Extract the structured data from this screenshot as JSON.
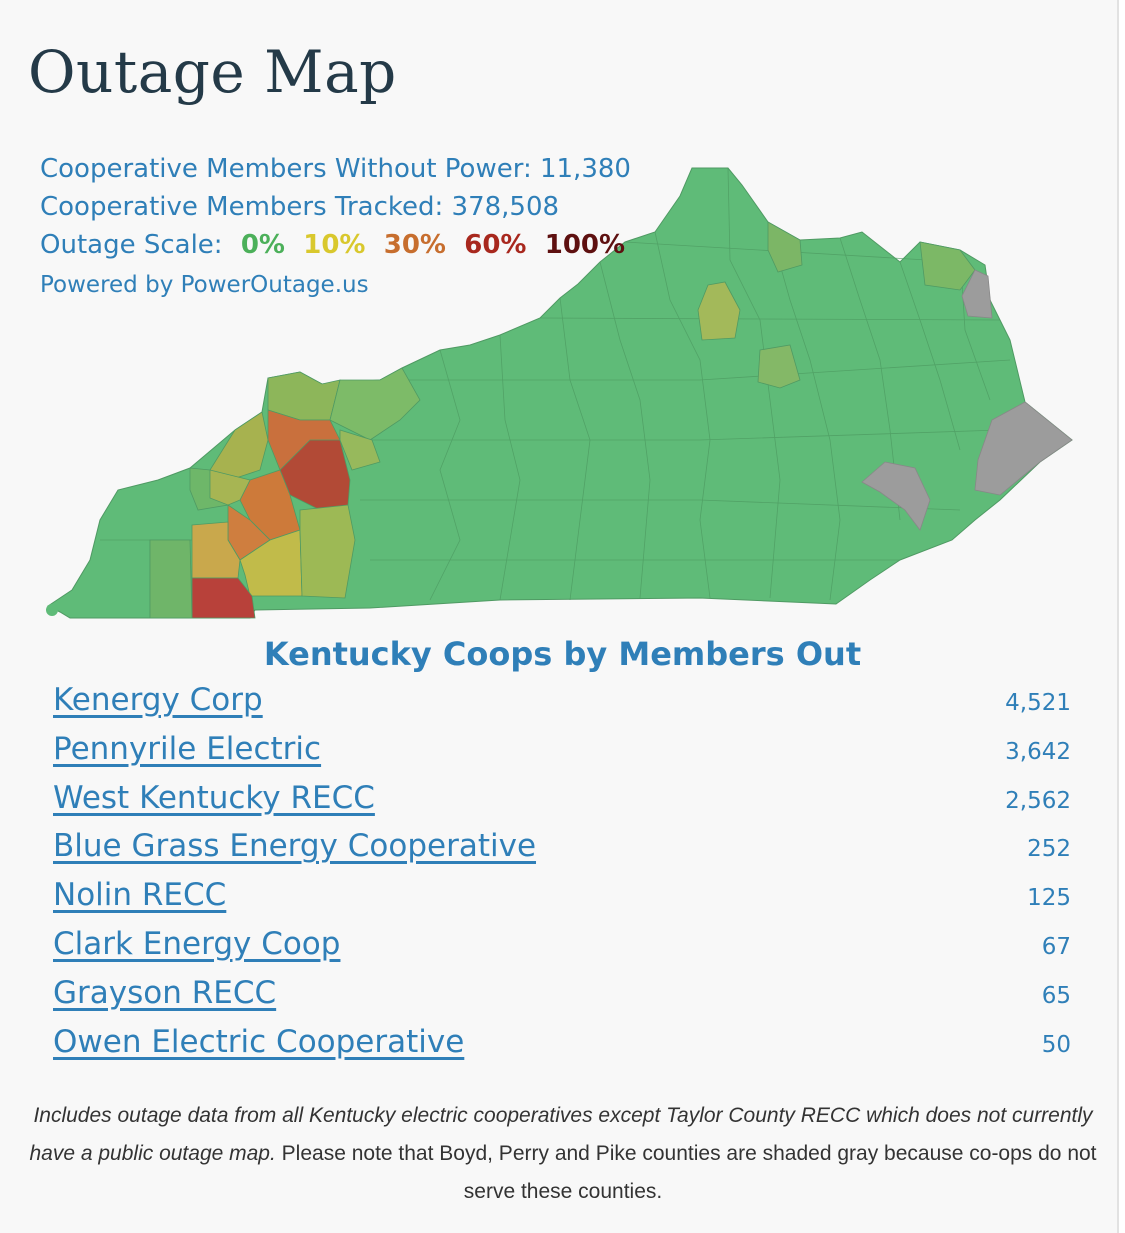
{
  "title": "Outage Map",
  "stats": {
    "without_power": "Cooperative Members Without Power: 11,380",
    "tracked": "Cooperative Members Tracked: 378,508",
    "scale_label": "Outage Scale:",
    "scale": [
      "0%",
      "10%",
      "30%",
      "60%",
      "100%"
    ],
    "powered_by": "Powered by PowerOutage.us"
  },
  "colors": {
    "accent": "#2f7fb8",
    "normal": "#5fbb78",
    "light": "#7bb566",
    "low": "#a1b654",
    "mid": "#c6ba4c",
    "orange": "#cd6f3a",
    "high": "#b0473a",
    "red": "#b84033",
    "gray": "#9b9b9b"
  },
  "list_title": "Kentucky Coops by Members Out",
  "coops": [
    {
      "name": "Kenergy Corp",
      "value": "4,521"
    },
    {
      "name": "Pennyrile Electric",
      "value": "3,642"
    },
    {
      "name": "West Kentucky RECC",
      "value": "2,562"
    },
    {
      "name": "Blue Grass Energy Cooperative",
      "value": "252"
    },
    {
      "name": "Nolin RECC",
      "value": "125"
    },
    {
      "name": "Clark Energy Coop",
      "value": "67"
    },
    {
      "name": "Grayson RECC",
      "value": "65"
    },
    {
      "name": "Owen Electric Cooperative",
      "value": "50"
    }
  ],
  "note": {
    "italic": "Includes outage data from all Kentucky electric cooperatives except Taylor County RECC which does not currently have a public outage map.",
    "plain": " Please note that Boyd, Perry and Pike counties are shaded gray because co-ops do not serve these counties."
  }
}
